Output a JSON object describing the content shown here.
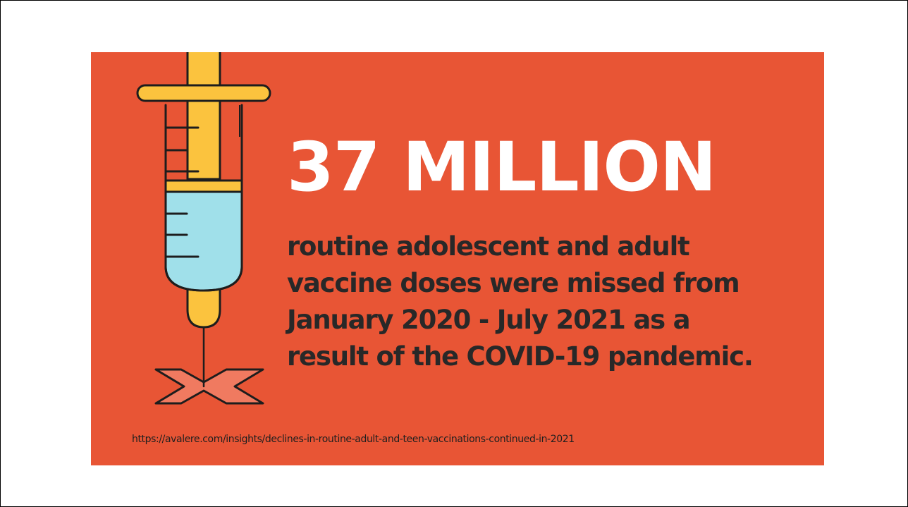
{
  "banner": {
    "headline": "37 MILLION",
    "lines": [
      "routine adolescent and adult",
      "vaccine doses were missed from",
      "January 2020 - July 2021 as a",
      "result of the COVID-19 pandemic."
    ],
    "source": "https://avalere.com/insights/declines-in-routine-adult-and-teen-vaccinations-continued-in-2021",
    "icon": "syringe-icon"
  },
  "colors": {
    "banner_background": "#e85535",
    "headline": "#ffffff",
    "body_text": "#282828",
    "syringe_plunger": "#fbc33e",
    "syringe_fluid": "#a0e0ea",
    "injection_mark": "#f07a60"
  }
}
